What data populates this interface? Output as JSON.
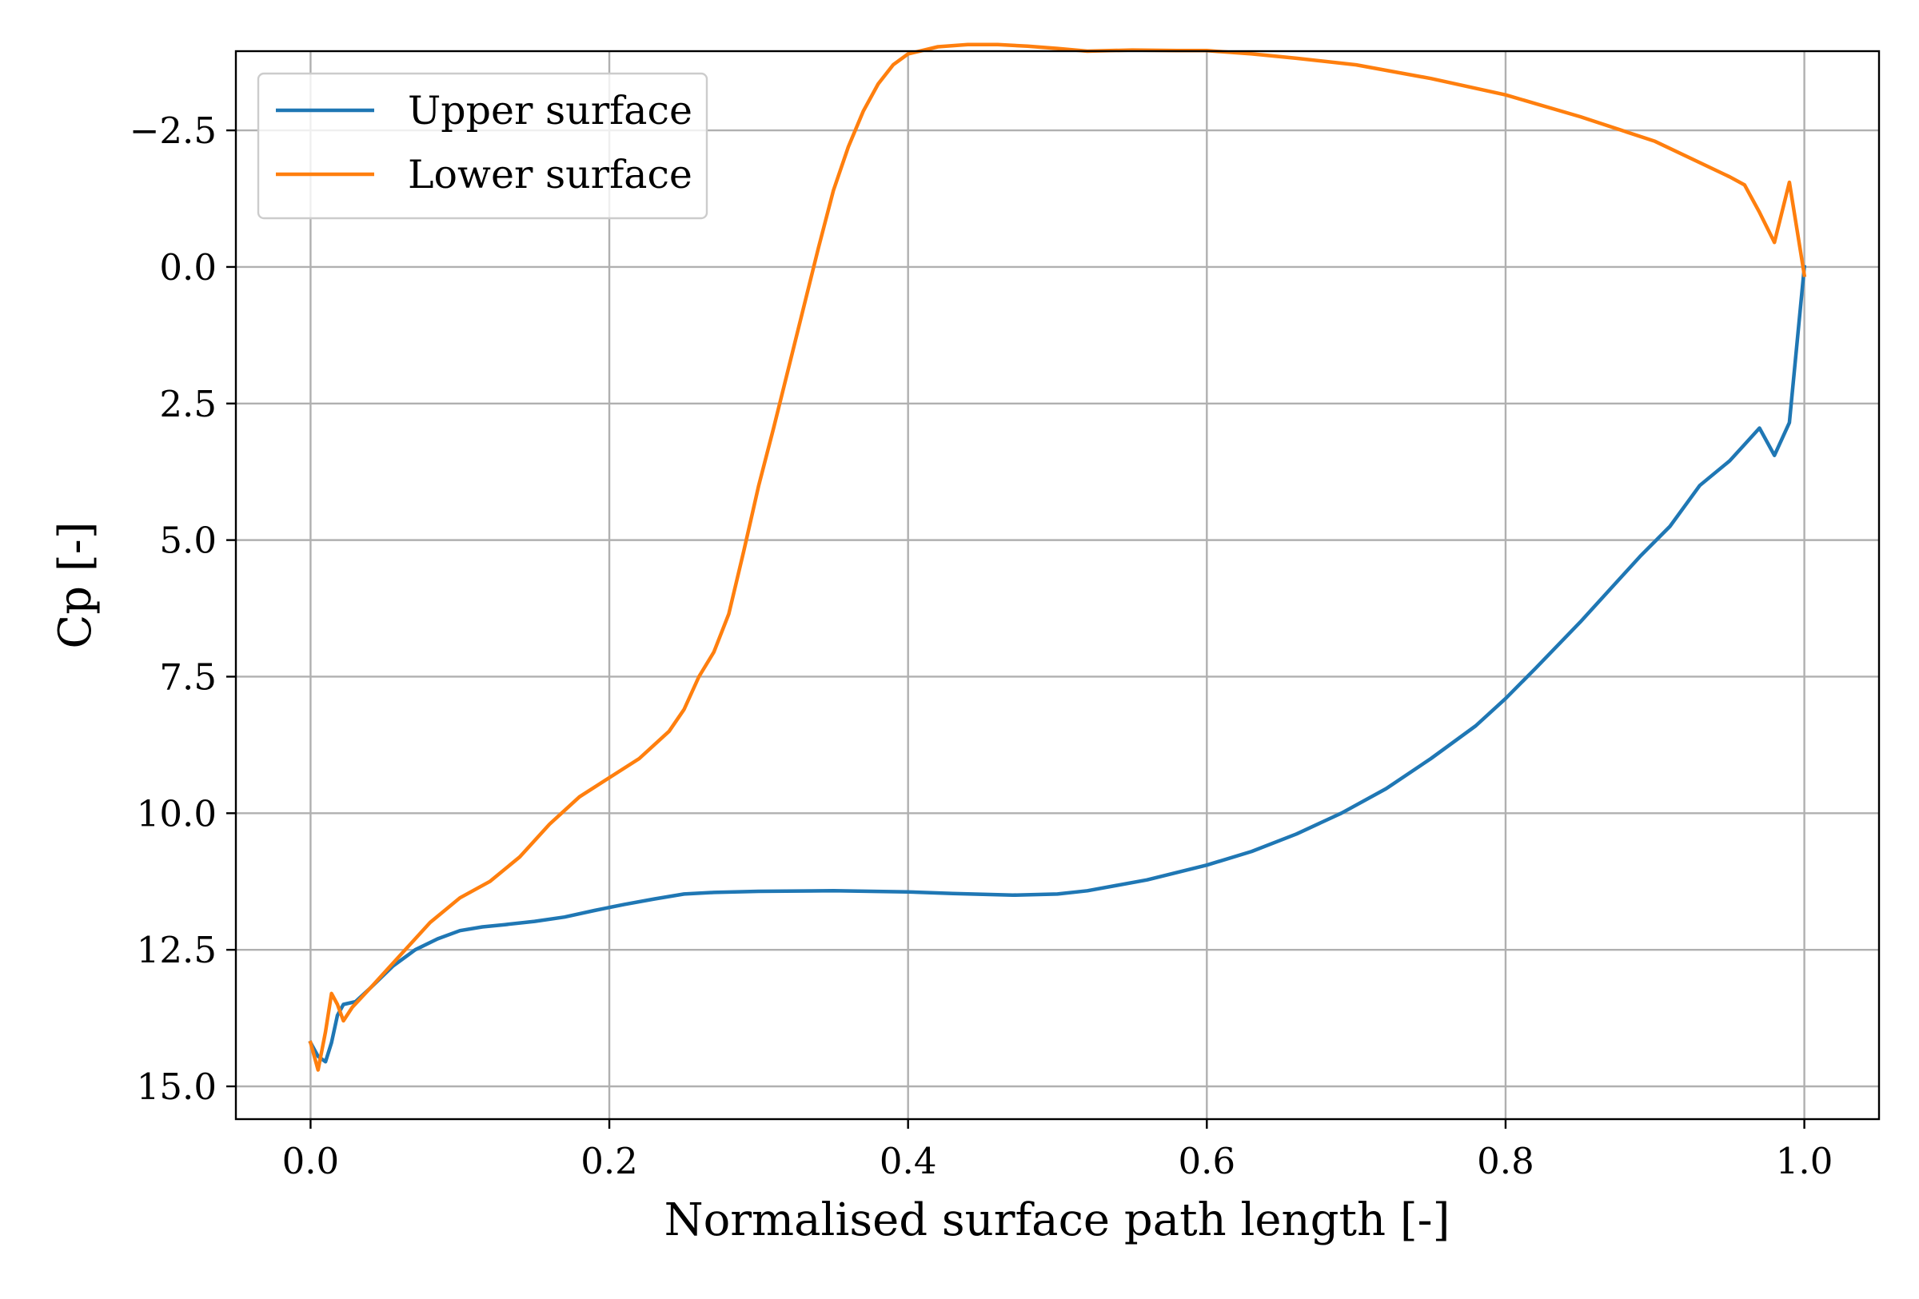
{
  "chart_data": {
    "type": "line",
    "title": "",
    "xlabel": "Normalised surface path length [-]",
    "ylabel": "Cp [-]",
    "xlim": [
      -0.05,
      1.05
    ],
    "ylim": [
      15.6,
      -3.95
    ],
    "y_inverted": true,
    "grid": true,
    "legend_position": "upper-left",
    "x_ticks": [
      {
        "value": 0.0,
        "label": "0.0"
      },
      {
        "value": 0.2,
        "label": "0.2"
      },
      {
        "value": 0.4,
        "label": "0.4"
      },
      {
        "value": 0.6,
        "label": "0.6"
      },
      {
        "value": 0.8,
        "label": "0.8"
      },
      {
        "value": 1.0,
        "label": "1.0"
      }
    ],
    "y_ticks": [
      {
        "value": -2.5,
        "label": "−2.5"
      },
      {
        "value": 0.0,
        "label": "0.0"
      },
      {
        "value": 2.5,
        "label": "2.5"
      },
      {
        "value": 5.0,
        "label": "5.0"
      },
      {
        "value": 7.5,
        "label": "7.5"
      },
      {
        "value": 10.0,
        "label": "10.0"
      },
      {
        "value": 12.5,
        "label": "12.5"
      },
      {
        "value": 15.0,
        "label": "15.0"
      }
    ],
    "series": [
      {
        "name": "Upper surface",
        "color": "#1f77b4",
        "x": [
          0.0,
          0.005,
          0.01,
          0.014,
          0.018,
          0.022,
          0.03,
          0.04,
          0.055,
          0.07,
          0.085,
          0.1,
          0.115,
          0.13,
          0.15,
          0.17,
          0.19,
          0.21,
          0.23,
          0.25,
          0.27,
          0.3,
          0.35,
          0.4,
          0.43,
          0.47,
          0.5,
          0.52,
          0.54,
          0.56,
          0.6,
          0.63,
          0.66,
          0.69,
          0.72,
          0.75,
          0.78,
          0.8,
          0.82,
          0.85,
          0.87,
          0.89,
          0.91,
          0.93,
          0.95,
          0.96,
          0.97,
          0.98,
          0.99,
          1.0
        ],
        "y": [
          14.2,
          14.45,
          14.55,
          14.2,
          13.7,
          13.5,
          13.45,
          13.2,
          12.8,
          12.5,
          12.3,
          12.15,
          12.08,
          12.04,
          11.98,
          11.9,
          11.78,
          11.67,
          11.57,
          11.48,
          11.45,
          11.43,
          11.42,
          11.44,
          11.47,
          11.5,
          11.48,
          11.42,
          11.32,
          11.22,
          10.95,
          10.7,
          10.38,
          10.0,
          9.55,
          9.0,
          8.4,
          7.9,
          7.35,
          6.5,
          5.9,
          5.3,
          4.75,
          4.0,
          3.55,
          3.25,
          2.95,
          3.45,
          2.85,
          0.0
        ]
      },
      {
        "name": "Lower surface",
        "color": "#ff7f0e",
        "x": [
          0.0,
          0.005,
          0.01,
          0.014,
          0.018,
          0.022,
          0.028,
          0.04,
          0.06,
          0.08,
          0.1,
          0.12,
          0.14,
          0.16,
          0.18,
          0.2,
          0.22,
          0.24,
          0.25,
          0.26,
          0.27,
          0.28,
          0.29,
          0.3,
          0.31,
          0.32,
          0.33,
          0.34,
          0.35,
          0.36,
          0.37,
          0.38,
          0.39,
          0.4,
          0.42,
          0.44,
          0.46,
          0.48,
          0.5,
          0.52,
          0.55,
          0.58,
          0.6,
          0.63,
          0.66,
          0.7,
          0.75,
          0.8,
          0.85,
          0.9,
          0.95,
          0.96,
          0.97,
          0.98,
          0.99,
          1.0
        ],
        "y": [
          14.2,
          14.7,
          14.0,
          13.3,
          13.5,
          13.8,
          13.55,
          13.2,
          12.6,
          12.0,
          11.55,
          11.25,
          10.8,
          10.2,
          9.7,
          9.35,
          9.0,
          8.5,
          8.1,
          7.5,
          7.05,
          6.35,
          5.2,
          4.0,
          2.95,
          1.85,
          0.75,
          -0.35,
          -1.4,
          -2.2,
          -2.85,
          -3.35,
          -3.7,
          -3.9,
          -4.03,
          -4.07,
          -4.07,
          -4.04,
          -4.0,
          -3.95,
          -3.97,
          -3.96,
          -3.96,
          -3.9,
          -3.82,
          -3.7,
          -3.45,
          -3.15,
          -2.75,
          -2.3,
          -1.65,
          -1.5,
          -1.0,
          -0.45,
          -1.55,
          0.15
        ]
      }
    ]
  }
}
